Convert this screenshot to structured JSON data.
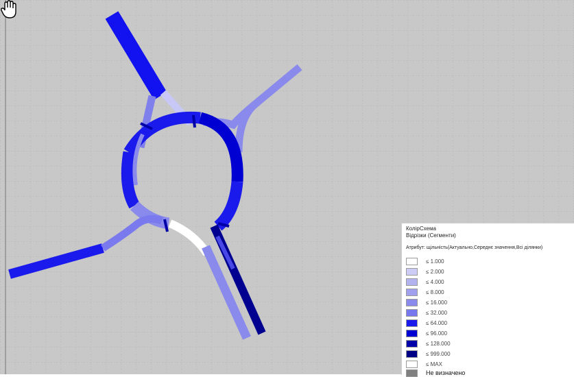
{
  "legend": {
    "title": "КолірСхема",
    "subtitle": "Відрізки (Сегменти)",
    "attribute": "Атрибут: щільність(Актуально,Середнє значення,Всі ділянки)",
    "entries": [
      {
        "label": "≤ 1.000",
        "color": "#ffffff"
      },
      {
        "label": "≤ 2.000",
        "color": "#ccccf6"
      },
      {
        "label": "≤ 4.000",
        "color": "#b3b3f0"
      },
      {
        "label": "≤ 8.000",
        "color": "#a0a0ee"
      },
      {
        "label": "≤ 16.000",
        "color": "#8a8aec"
      },
      {
        "label": "≤ 32.000",
        "color": "#7777ee"
      },
      {
        "label": "≤ 64.000",
        "color": "#1a1aec"
      },
      {
        "label": "≤ 96.000",
        "color": "#0000d2"
      },
      {
        "label": "≤ 128.000",
        "color": "#0000a8"
      },
      {
        "label": "≤ 999.000",
        "color": "#000086"
      },
      {
        "label": "≤ MAX",
        "color": "#ffffff"
      },
      {
        "label": "Не визначено",
        "color": "#808080"
      }
    ]
  },
  "colors": {
    "map_background": "#c8c8c8",
    "grid": "#b4b4b4"
  },
  "cursor_icon": "hand-pan-cursor"
}
